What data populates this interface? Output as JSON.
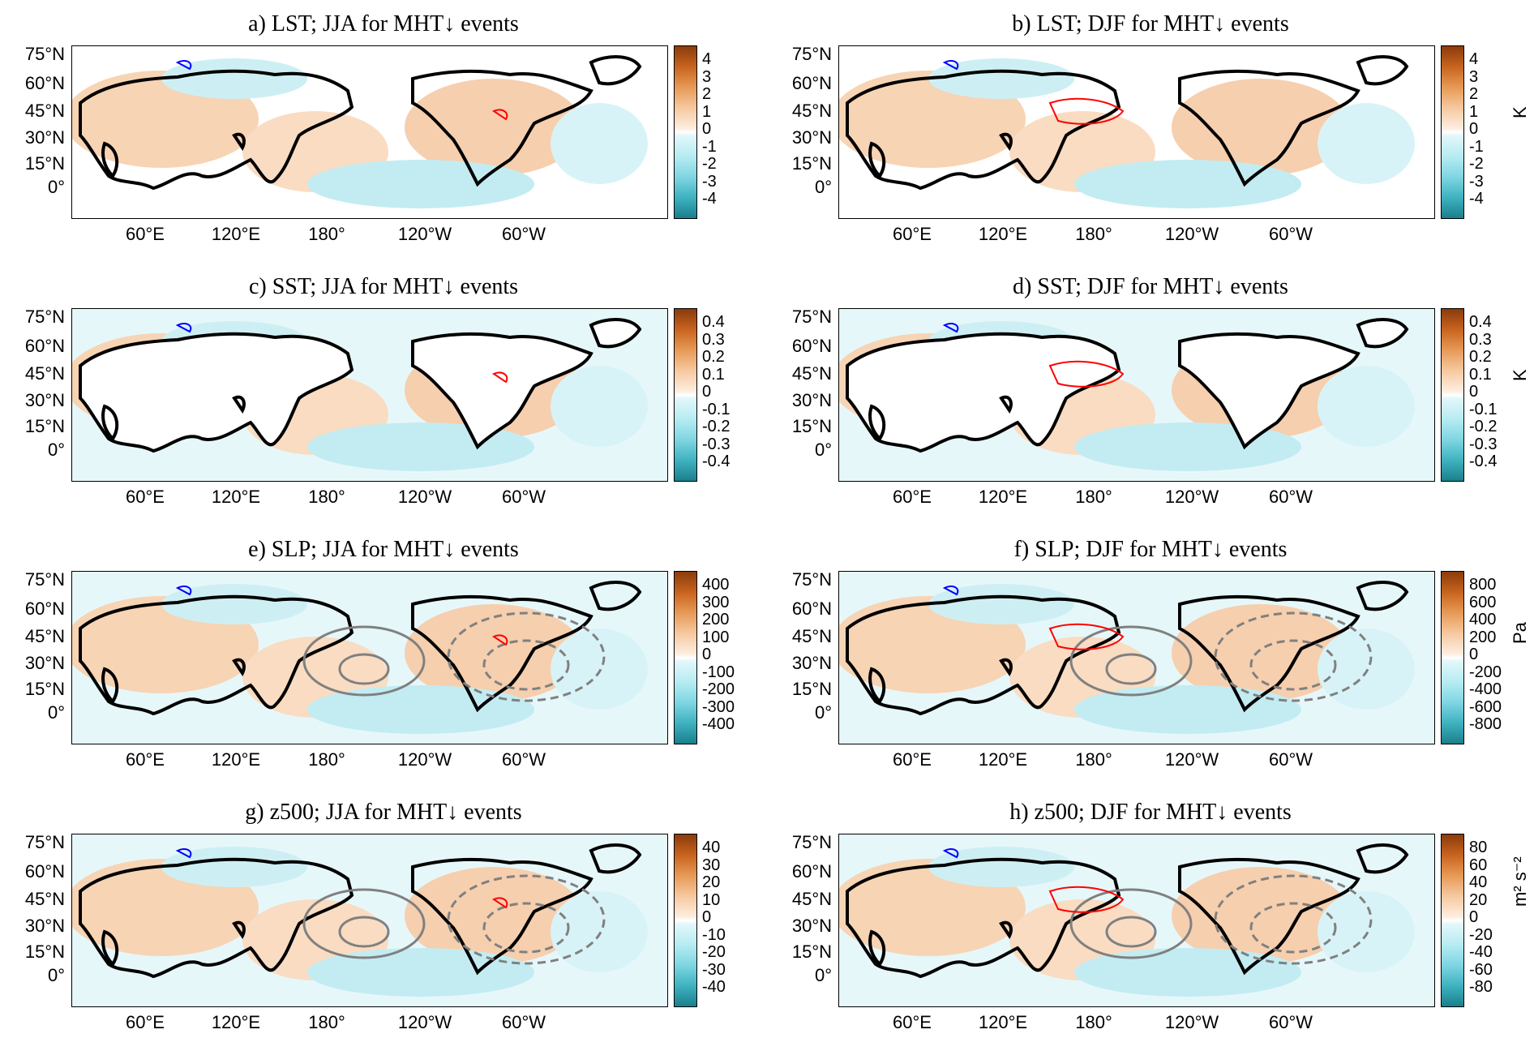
{
  "panels": [
    {
      "id": "a",
      "title": "a) LST; JJA for MHT↓ events",
      "ticks": [
        "4",
        "3",
        "2",
        "1",
        "0",
        "-1",
        "-2",
        "-3",
        "-4"
      ],
      "unit": "",
      "land": "fill",
      "ocean": "white",
      "contours": false
    },
    {
      "id": "b",
      "title": "b) LST; DJF for MHT↓ events",
      "ticks": [
        "4",
        "3",
        "2",
        "1",
        "0",
        "-1",
        "-2",
        "-3",
        "-4"
      ],
      "unit": "K",
      "land": "fill",
      "ocean": "white",
      "contours": false
    },
    {
      "id": "c",
      "title": "c) SST; JJA for MHT↓ events",
      "ticks": [
        "0.4",
        "0.3",
        "0.2",
        "0.1",
        "0",
        "-0.1",
        "-0.2",
        "-0.3",
        "-0.4"
      ],
      "unit": "",
      "land": "white",
      "ocean": "fill",
      "contours": false
    },
    {
      "id": "d",
      "title": "d) SST; DJF for MHT↓ events",
      "ticks": [
        "0.4",
        "0.3",
        "0.2",
        "0.1",
        "0",
        "-0.1",
        "-0.2",
        "-0.3",
        "-0.4"
      ],
      "unit": "K",
      "land": "white",
      "ocean": "fill",
      "contours": false
    },
    {
      "id": "e",
      "title": "e) SLP; JJA for MHT↓ events",
      "ticks": [
        "400",
        "300",
        "200",
        "100",
        "0",
        "-100",
        "-200",
        "-300",
        "-400"
      ],
      "unit": "",
      "land": "fill",
      "ocean": "fill",
      "contours": true
    },
    {
      "id": "f",
      "title": "f) SLP; DJF for MHT↓ events",
      "ticks": [
        "800",
        "600",
        "400",
        "200",
        "0",
        "-200",
        "-400",
        "-600",
        "-800"
      ],
      "unit": "Pa",
      "land": "fill",
      "ocean": "fill",
      "contours": true
    },
    {
      "id": "g",
      "title": "g) z500; JJA for MHT↓ events",
      "ticks": [
        "40",
        "30",
        "20",
        "10",
        "0",
        "-10",
        "-20",
        "-30",
        "-40"
      ],
      "unit": "",
      "land": "fill",
      "ocean": "fill",
      "contours": true
    },
    {
      "id": "h",
      "title": "h) z500; DJF for MHT↓ events",
      "ticks": [
        "80",
        "60",
        "40",
        "20",
        "0",
        "-20",
        "-40",
        "-60",
        "-80"
      ],
      "unit": "m² s⁻²",
      "land": "fill",
      "ocean": "fill",
      "contours": true
    }
  ],
  "lat_labels": [
    "75°N",
    "60°N",
    "45°N",
    "30°N",
    "15°N",
    "0°"
  ],
  "lon_labels": [
    "60°E",
    "120°E",
    "180°",
    "120°W",
    "60°W"
  ],
  "colors": {
    "warm": "#e8a36b",
    "cool": "#8fdbe6",
    "sig_pos": "#ff0000",
    "sig_neg": "#0000ff",
    "contour": "#808080",
    "coast": "#000000"
  }
}
